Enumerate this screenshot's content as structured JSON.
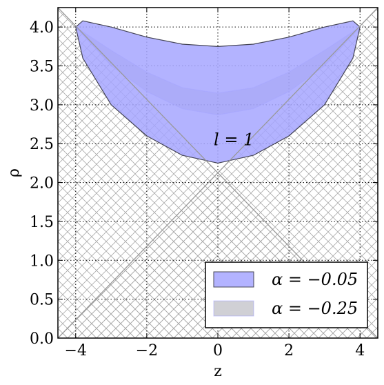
{
  "chart_data": {
    "type": "area",
    "xlabel": "z",
    "ylabel": "ρ",
    "xlim": [
      -4.5,
      4.5
    ],
    "ylim": [
      0.0,
      4.25
    ],
    "x_ticks": [
      -4,
      -2,
      0,
      2,
      4
    ],
    "x_tick_labels": [
      "−4",
      "−2",
      "0",
      "2",
      "4"
    ],
    "y_ticks": [
      0.0,
      0.5,
      1.0,
      1.5,
      2.0,
      2.5,
      3.0,
      3.5,
      4.0
    ],
    "y_tick_labels": [
      "0.0",
      "0.5",
      "1.0",
      "1.5",
      "2.0",
      "2.5",
      "3.0",
      "3.5",
      "4.0"
    ],
    "grid": true,
    "annotation": {
      "text": "l = 1",
      "x": 0.45,
      "y": 2.55
    },
    "boundary_lines": [
      {
        "x": [
          -4.5,
          4.5
        ],
        "y": [
          4.25,
          0.0
        ]
      },
      {
        "x": [
          -4.5,
          4.5
        ],
        "y": [
          0.0,
          4.25
        ]
      }
    ],
    "hatched_region": "excluded (outside cone)",
    "series": [
      {
        "name": "α = −0.25",
        "color": "#a6a6ff",
        "x": [
          -4.0,
          -3.8,
          -3.0,
          -2.0,
          -1.0,
          0.0,
          1.0,
          2.0,
          3.0,
          3.8,
          4.0
        ],
        "upper": [
          4.0,
          4.08,
          4.0,
          3.87,
          3.78,
          3.75,
          3.78,
          3.87,
          4.0,
          4.08,
          4.0
        ],
        "lower": [
          4.0,
          3.6,
          3.0,
          2.6,
          2.35,
          2.25,
          2.35,
          2.6,
          3.0,
          3.6,
          4.0
        ]
      },
      {
        "name": "α = −0.05",
        "color": "#777788",
        "x": [
          -4.0,
          -3.0,
          -2.0,
          -1.0,
          0.0,
          1.0,
          2.0,
          3.0,
          4.0
        ],
        "upper": [
          4.0,
          3.7,
          3.42,
          3.22,
          3.15,
          3.22,
          3.42,
          3.7,
          4.0
        ],
        "lower": [
          4.0,
          3.5,
          3.17,
          2.95,
          2.87,
          2.95,
          3.17,
          3.5,
          4.0
        ]
      }
    ],
    "legend": {
      "position": "lower-right",
      "entries": [
        "α = −0.05",
        "α = −0.25"
      ]
    }
  }
}
